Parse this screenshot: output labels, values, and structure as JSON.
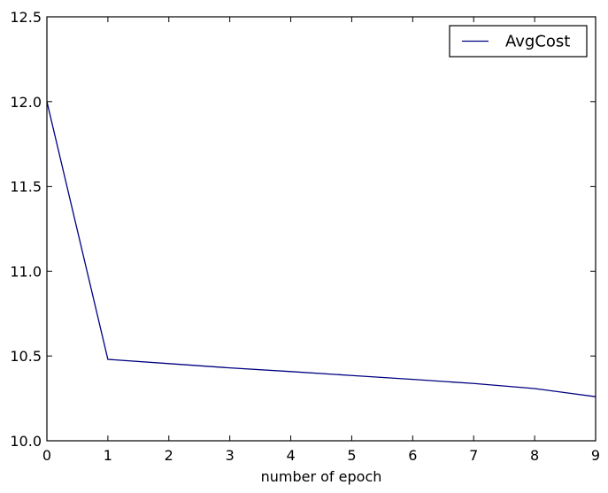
{
  "chart_data": {
    "type": "line",
    "title": "",
    "xlabel": "number of epoch",
    "ylabel": "",
    "xlim": [
      0,
      9
    ],
    "ylim": [
      10.0,
      12.5
    ],
    "xticks": [
      "0",
      "1",
      "2",
      "3",
      "4",
      "5",
      "6",
      "7",
      "8",
      "9"
    ],
    "yticks": [
      "10.0",
      "10.5",
      "11.0",
      "11.5",
      "12.0",
      "12.5"
    ],
    "legend_position": "top-right",
    "grid": false,
    "series": [
      {
        "name": "AvgCost",
        "color": "#000080",
        "x": [
          0,
          1,
          2,
          3,
          4,
          5,
          6,
          7,
          8,
          9
        ],
        "y": [
          12.0,
          10.48,
          10.455,
          10.43,
          10.408,
          10.385,
          10.362,
          10.338,
          10.308,
          10.26
        ]
      }
    ]
  }
}
